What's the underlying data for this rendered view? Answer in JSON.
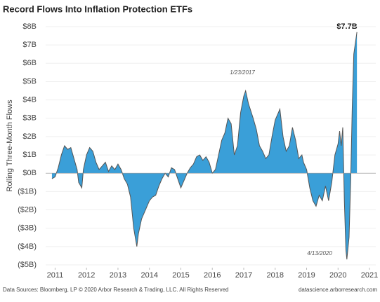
{
  "chart_data": {
    "type": "area",
    "title": "Record Flows Into Inflation Protection ETFs",
    "ylabel": "Rolling Three-Month Flows",
    "source": "Data Sources: Bloomberg, LP © 2020 Arbor Research & Trading, LLC. All Rights Reserved",
    "website": "datascience.arborresearch.com",
    "annotations": [
      "$7.7B",
      "1/23/2017",
      "4/13/2020"
    ],
    "color": "#3a9fd8",
    "line_color": "#555555",
    "grid": true,
    "xlim": [
      2010.7,
      2021.2
    ],
    "xticks": [
      2011,
      2012,
      2013,
      2014,
      2015,
      2016,
      2017,
      2018,
      2019,
      2020,
      2021
    ],
    "ylim": [
      -5,
      8
    ],
    "yticks": [
      {
        "value": -5,
        "label": "($5B)"
      },
      {
        "value": -4,
        "label": "($4B)"
      },
      {
        "value": -3,
        "label": "($3B)"
      },
      {
        "value": -2,
        "label": "($2B)"
      },
      {
        "value": -1,
        "label": "($1B)"
      },
      {
        "value": 0,
        "label": "$0B"
      },
      {
        "value": 1,
        "label": "$1B"
      },
      {
        "value": 2,
        "label": "$2B"
      },
      {
        "value": 3,
        "label": "$3B"
      },
      {
        "value": 4,
        "label": "$4B"
      },
      {
        "value": 5,
        "label": "$5B"
      },
      {
        "value": 6,
        "label": "$6B"
      },
      {
        "value": 7,
        "label": "$7B"
      },
      {
        "value": 8,
        "label": "$8B"
      }
    ],
    "x": [
      2010.9,
      2011.0,
      2011.1,
      2011.2,
      2011.3,
      2011.4,
      2011.5,
      2011.6,
      2011.7,
      2011.75,
      2011.85,
      2011.9,
      2012.0,
      2012.1,
      2012.2,
      2012.3,
      2012.4,
      2012.5,
      2012.6,
      2012.7,
      2012.8,
      2012.9,
      2013.0,
      2013.1,
      2013.2,
      2013.3,
      2013.4,
      2013.5,
      2013.6,
      2013.65,
      2013.75,
      2013.9,
      2014.0,
      2014.1,
      2014.2,
      2014.3,
      2014.4,
      2014.5,
      2014.6,
      2014.7,
      2014.8,
      2014.9,
      2015.0,
      2015.1,
      2015.2,
      2015.3,
      2015.4,
      2015.5,
      2015.6,
      2015.7,
      2015.8,
      2015.9,
      2016.0,
      2016.1,
      2016.2,
      2016.3,
      2016.4,
      2016.5,
      2016.6,
      2016.7,
      2016.8,
      2016.9,
      2017.0,
      2017.06,
      2017.15,
      2017.3,
      2017.4,
      2017.5,
      2017.6,
      2017.7,
      2017.8,
      2017.9,
      2018.0,
      2018.1,
      2018.15,
      2018.25,
      2018.35,
      2018.45,
      2018.55,
      2018.65,
      2018.75,
      2018.85,
      2018.9,
      2019.0,
      2019.1,
      2019.2,
      2019.3,
      2019.4,
      2019.5,
      2019.6,
      2019.7,
      2019.8,
      2019.9,
      2020.0,
      2020.05,
      2020.1,
      2020.15,
      2020.2,
      2020.25,
      2020.28,
      2020.35,
      2020.4,
      2020.45,
      2020.5,
      2020.55,
      2020.6
    ],
    "values": [
      -0.3,
      -0.2,
      0.3,
      1.0,
      1.5,
      1.3,
      1.4,
      0.8,
      0.2,
      -0.5,
      -0.8,
      0.2,
      1.0,
      1.4,
      1.2,
      0.6,
      0.2,
      0.4,
      0.6,
      0.1,
      0.4,
      0.2,
      0.5,
      0.2,
      -0.3,
      -0.6,
      -1.3,
      -3.0,
      -4.0,
      -3.3,
      -2.5,
      -1.9,
      -1.5,
      -1.3,
      -1.2,
      -0.7,
      -0.3,
      0.0,
      -0.2,
      0.3,
      0.2,
      -0.3,
      -0.8,
      -0.4,
      0.0,
      0.3,
      0.5,
      0.9,
      1.0,
      0.7,
      0.9,
      0.6,
      0.0,
      0.2,
      1.0,
      1.8,
      2.2,
      3.0,
      2.7,
      1.0,
      1.5,
      3.3,
      4.2,
      4.5,
      3.8,
      3.0,
      2.4,
      1.5,
      1.2,
      0.8,
      1.0,
      2.0,
      2.9,
      3.3,
      3.5,
      2.0,
      1.2,
      1.5,
      2.5,
      1.8,
      0.8,
      1.0,
      0.6,
      0.2,
      -0.8,
      -1.5,
      -1.8,
      -1.2,
      -1.5,
      -0.7,
      -1.5,
      -0.5,
      1.0,
      1.6,
      2.3,
      1.5,
      2.5,
      -1.5,
      -4.2,
      -4.7,
      -3.5,
      -0.5,
      3.5,
      6.5,
      7.1,
      7.7
    ]
  }
}
